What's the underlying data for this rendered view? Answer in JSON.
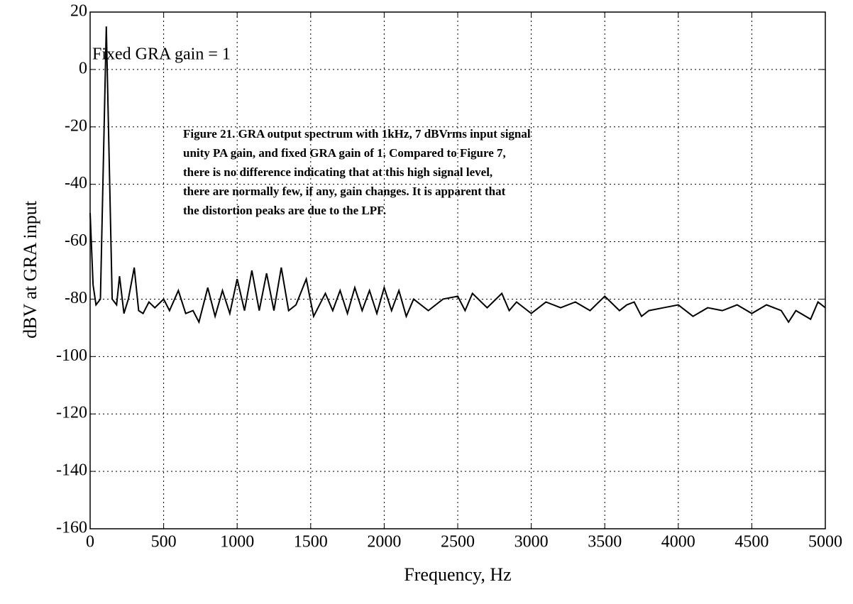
{
  "chart_data": {
    "type": "line",
    "xlabel": "Frequency, Hz",
    "ylabel": "dBV at GRA input",
    "annotations": [
      "Fixed GRA gain = 1"
    ],
    "caption": [
      "Figure 21. GRA output spectrum with 1kHz, 7 dBVrms input signal",
      "unity PA gain, and fixed GRA gain of 1. Compared to Figure 7,",
      "there is no difference indicating that at this high signal level,",
      "there are normally few, if any, gain changes. It is apparent that",
      "the distortion peaks are due to the LPF."
    ],
    "xlim": [
      0,
      5000
    ],
    "xticks": [
      0,
      500,
      1000,
      1500,
      2000,
      2500,
      3000,
      3500,
      4000,
      4500,
      5000
    ],
    "ylim": [
      -160,
      20
    ],
    "yticks": [
      -160,
      -140,
      -120,
      -100,
      -80,
      -60,
      -40,
      -20,
      0,
      20
    ],
    "grid": true,
    "x": [
      0,
      20,
      40,
      70,
      110,
      150,
      180,
      200,
      230,
      260,
      300,
      330,
      360,
      400,
      440,
      500,
      540,
      600,
      650,
      700,
      740,
      800,
      850,
      900,
      950,
      1000,
      1050,
      1100,
      1150,
      1200,
      1250,
      1300,
      1350,
      1400,
      1470,
      1520,
      1600,
      1650,
      1700,
      1750,
      1800,
      1850,
      1900,
      1950,
      2000,
      2050,
      2100,
      2150,
      2200,
      2300,
      2400,
      2500,
      2550,
      2600,
      2700,
      2800,
      2850,
      2900,
      3000,
      3100,
      3200,
      3300,
      3400,
      3500,
      3600,
      3650,
      3700,
      3750,
      3800,
      3900,
      4000,
      4100,
      4200,
      4300,
      4400,
      4500,
      4600,
      4700,
      4750,
      4800,
      4900,
      4950,
      5000
    ],
    "series": [
      {
        "color": "#000000",
        "values": [
          -50,
          -75,
          -82,
          -80,
          15,
          -80,
          -82,
          -72,
          -85,
          -80,
          -69,
          -84,
          -85,
          -81,
          -83,
          -80,
          -84,
          -77,
          -85,
          -84,
          -88,
          -76,
          -86,
          -77,
          -85,
          -73,
          -84,
          -70,
          -84,
          -71,
          -84,
          -69,
          -84,
          -82,
          -73,
          -86,
          -78,
          -84,
          -77,
          -85,
          -76,
          -84,
          -77,
          -85,
          -76,
          -84,
          -77,
          -86,
          -80,
          -84,
          -80,
          -79,
          -84,
          -78,
          -83,
          -78,
          -84,
          -81,
          -85,
          -81,
          -83,
          -81,
          -84,
          -79,
          -84,
          -82,
          -81,
          -86,
          -84,
          -83,
          -82,
          -86,
          -83,
          -84,
          -82,
          -85,
          -82,
          -84,
          -88,
          -84,
          -87,
          -81,
          -83
        ]
      }
    ]
  }
}
